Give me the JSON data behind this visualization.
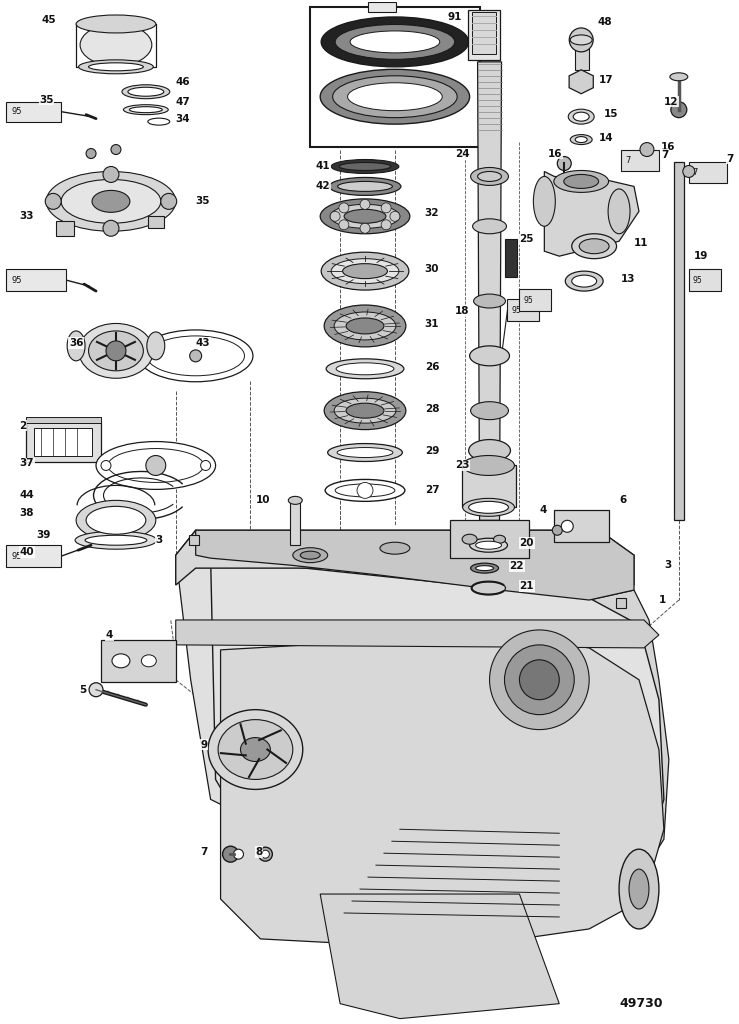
{
  "bg_color": "#ffffff",
  "line_color": "#1a1a1a",
  "text_color": "#111111",
  "fig_width": 7.39,
  "fig_height": 10.24,
  "dpi": 100,
  "diagram_number": "49730"
}
